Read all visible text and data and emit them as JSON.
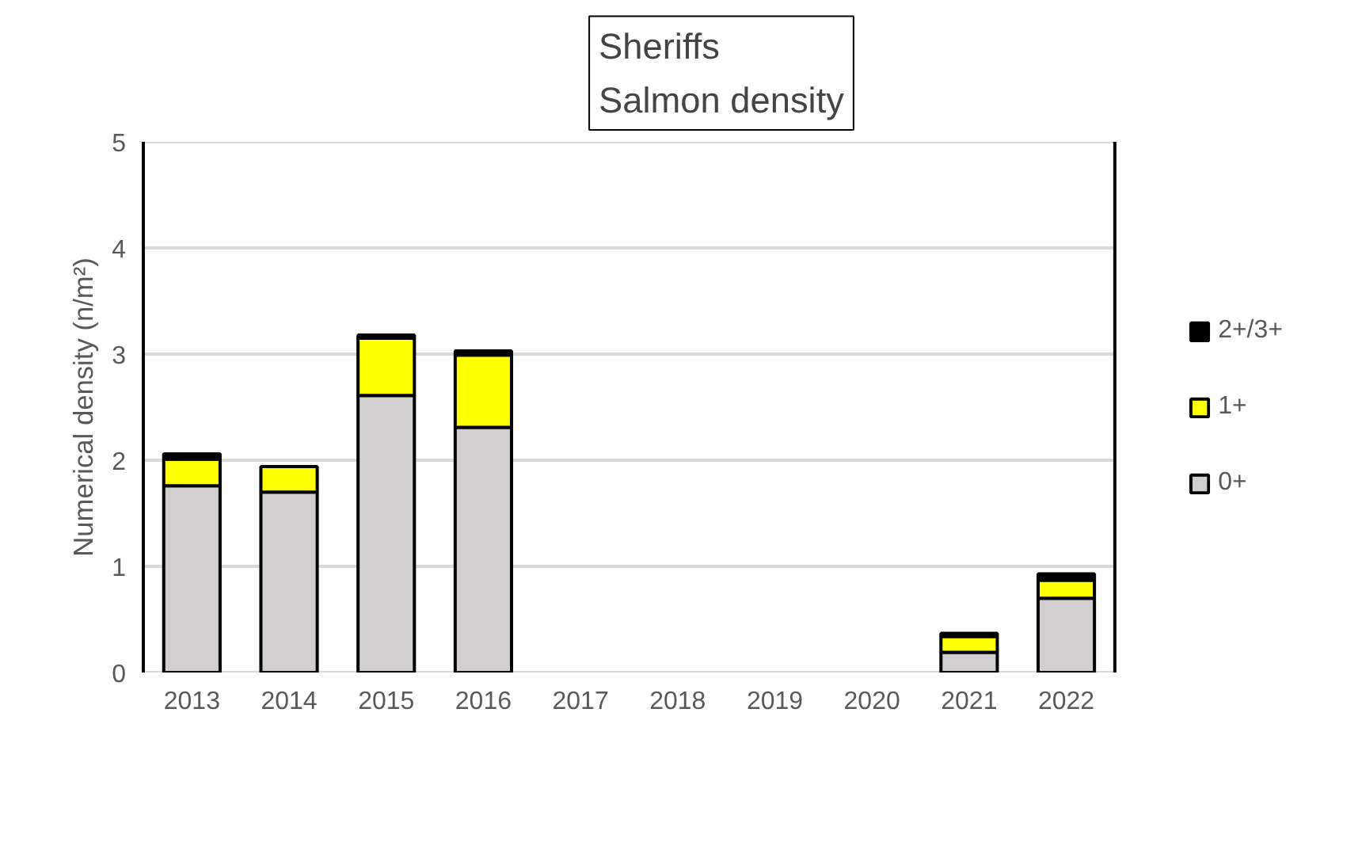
{
  "chart_data": {
    "type": "bar",
    "title": "Sheriffs\nSalmon density",
    "ylabel": "Numerical density (n/m²)",
    "categories": [
      "2013",
      "2014",
      "2015",
      "2016",
      "2017",
      "2018",
      "2019",
      "2020",
      "2021",
      "2022"
    ],
    "stacked": true,
    "ylim": [
      0,
      5
    ],
    "yticks": [
      0,
      1,
      2,
      3,
      4,
      5
    ],
    "grid": "y",
    "legend": "right",
    "series": [
      {
        "name": "0+",
        "color": "#d0cece",
        "values": [
          1.76,
          1.7,
          2.61,
          2.31,
          0,
          0,
          0,
          0,
          0.19,
          0.7
        ]
      },
      {
        "name": "1+",
        "color": "#ffff00",
        "values": [
          0.25,
          0.24,
          0.54,
          0.68,
          0,
          0,
          0,
          0,
          0.15,
          0.17
        ]
      },
      {
        "name": "2+/3+",
        "color": "#000000",
        "values": [
          0.05,
          0,
          0.03,
          0.04,
          0,
          0,
          0,
          0,
          0.03,
          0.06
        ]
      }
    ]
  }
}
